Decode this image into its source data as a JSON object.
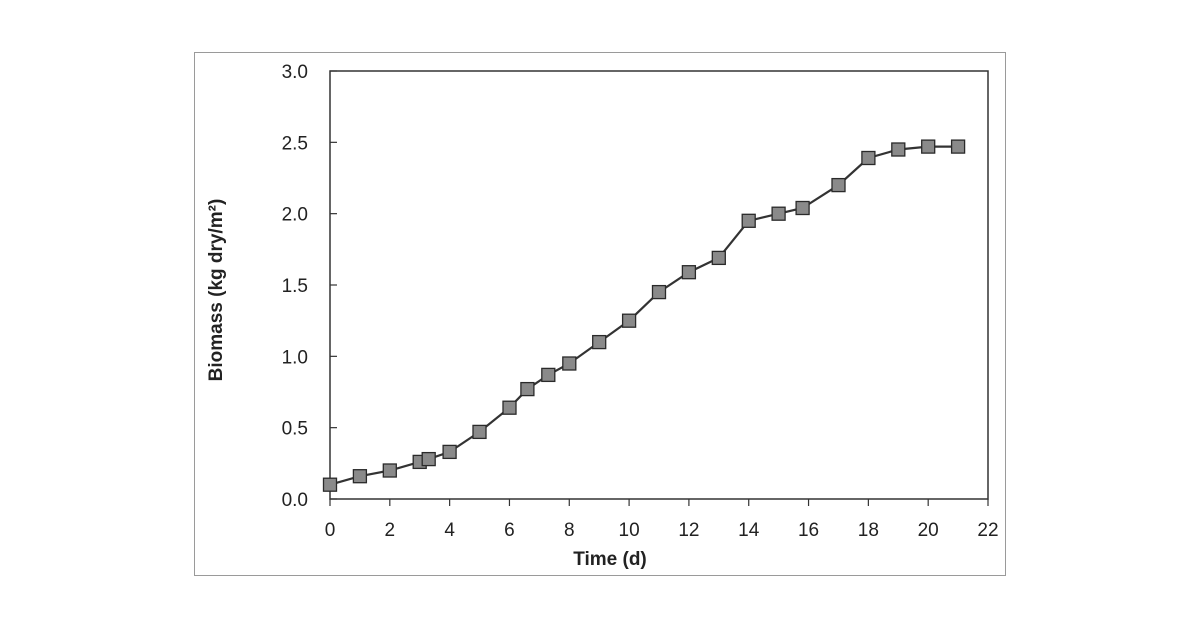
{
  "chart_data": {
    "type": "line",
    "title": "",
    "xlabel": "Time (d)",
    "ylabel": "Biomass (kg dry/m²)",
    "xlim": [
      0,
      22
    ],
    "ylim": [
      0.0,
      3.0
    ],
    "xticks": [
      0,
      2,
      4,
      6,
      8,
      10,
      12,
      14,
      16,
      18,
      20,
      22
    ],
    "yticks": [
      "0.0",
      "0.5",
      "1.0",
      "1.5",
      "2.0",
      "2.5",
      "3.0"
    ],
    "grid": false,
    "legend": "none",
    "series": [
      {
        "marker": "square",
        "color": "#8a8a8a",
        "line_color": "#333333",
        "x": [
          0,
          1,
          2,
          3,
          3.3,
          4,
          5,
          6,
          6.6,
          7.3,
          8,
          9,
          10,
          11,
          12,
          13,
          14,
          15,
          15.8,
          17,
          18,
          19,
          20,
          21
        ],
        "y": [
          0.1,
          0.16,
          0.2,
          0.26,
          0.28,
          0.33,
          0.47,
          0.64,
          0.77,
          0.87,
          0.95,
          1.1,
          1.25,
          1.45,
          1.59,
          1.69,
          1.95,
          2.0,
          2.04,
          2.2,
          2.39,
          2.45,
          2.47,
          2.47
        ]
      }
    ]
  }
}
